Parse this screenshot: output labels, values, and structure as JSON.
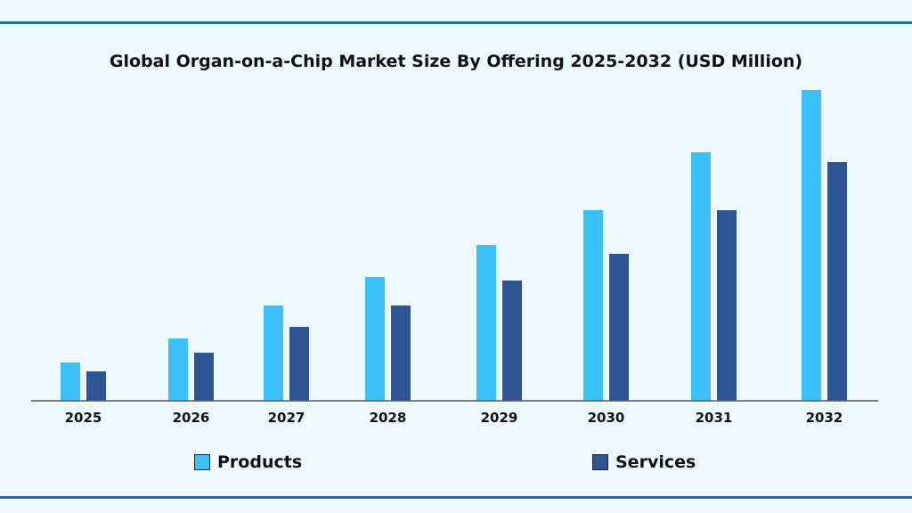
{
  "chart_data": {
    "type": "bar",
    "title": "Global Organ-on-a-Chip Market Size By Offering 2025-2032 (USD Million)",
    "categories": [
      "2025",
      "2026",
      "2027",
      "2028",
      "2029",
      "2030",
      "2031",
      "2032"
    ],
    "series": [
      {
        "name": "Products",
        "color": "#3bc0f7",
        "values": [
          43,
          70,
          107,
          139,
          175,
          214,
          279,
          349
        ]
      },
      {
        "name": "Services",
        "color": "#2f5493",
        "values": [
          33,
          54,
          83,
          107,
          135,
          165,
          214,
          268
        ]
      }
    ],
    "xlabel": "",
    "ylabel": "",
    "ylim": [
      0,
      360
    ],
    "grid": false,
    "legend_position": "bottom"
  }
}
